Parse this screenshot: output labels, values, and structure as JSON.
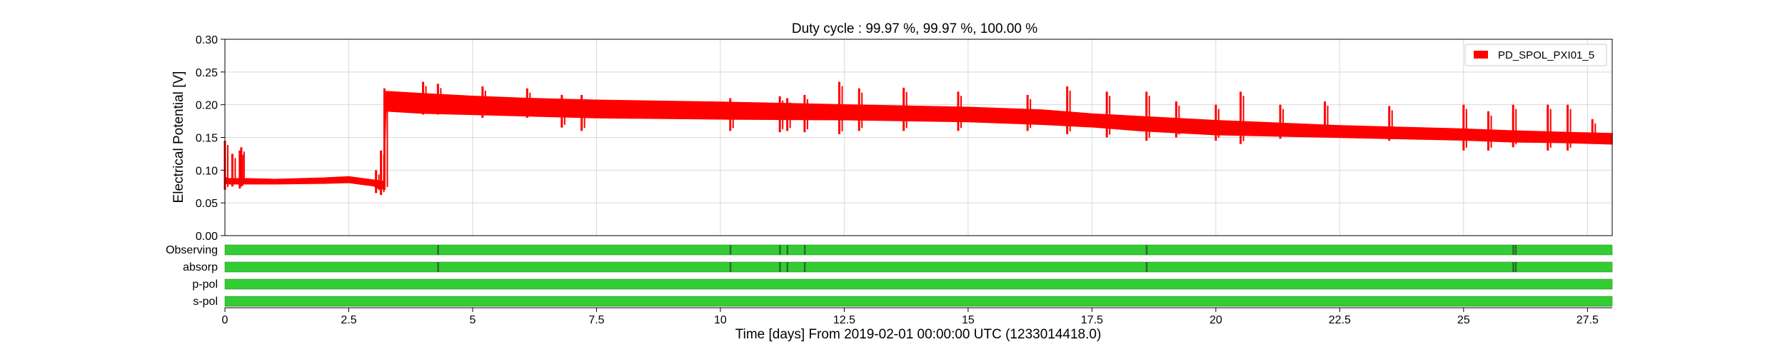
{
  "chart_data": {
    "type": "line",
    "title": "Duty cycle : 99.97 %, 99.97 %, 100.00 %",
    "xlabel": "Time [days] From 2019-02-01 00:00:00 UTC (1233014418.0)",
    "ylabel": "Electrical Potential [V]",
    "xlim": [
      0,
      28
    ],
    "ylim": [
      0,
      0.3
    ],
    "x_ticks": [
      0,
      2.5,
      5,
      7.5,
      10,
      12.5,
      15,
      17.5,
      20,
      22.5,
      25,
      27.5
    ],
    "x_tick_labels": [
      "0",
      "2.5",
      "5",
      "7.5",
      "10",
      "12.5",
      "15",
      "17.5",
      "20",
      "22.5",
      "25",
      "27.5"
    ],
    "y_ticks": [
      0,
      0.05,
      0.1,
      0.15,
      0.2,
      0.25,
      0.3
    ],
    "y_tick_labels": [
      "0.00",
      "0.05",
      "0.10",
      "0.15",
      "0.20",
      "0.25",
      "0.30"
    ],
    "grid": true,
    "legend": {
      "position": "top-right"
    },
    "series": [
      {
        "name": "PD_SPOL_PXI01_5",
        "color": "#ff0000",
        "band": {
          "x": [
            0,
            0.1,
            0.5,
            1.0,
            2.0,
            2.5,
            3.0,
            3.1,
            3.2,
            3.25,
            3.3,
            4.0,
            5.0,
            6.0,
            7.5,
            10.0,
            12.5,
            15.0,
            16.5,
            17.5,
            18.5,
            20.0,
            22.5,
            25.0,
            26.0,
            27.0,
            28.0
          ],
          "lower": [
            0.08,
            0.079,
            0.079,
            0.079,
            0.08,
            0.081,
            0.076,
            0.072,
            0.071,
            0.19,
            0.19,
            0.187,
            0.185,
            0.183,
            0.18,
            0.178,
            0.177,
            0.174,
            0.17,
            0.166,
            0.16,
            0.154,
            0.15,
            0.146,
            0.143,
            0.142,
            0.14
          ],
          "upper": [
            0.089,
            0.087,
            0.087,
            0.086,
            0.088,
            0.09,
            0.085,
            0.084,
            0.083,
            0.22,
            0.22,
            0.217,
            0.213,
            0.21,
            0.207,
            0.204,
            0.2,
            0.196,
            0.192,
            0.186,
            0.182,
            0.176,
            0.168,
            0.163,
            0.16,
            0.158,
            0.156
          ]
        },
        "spikes": [
          {
            "x": 0.0,
            "low": 0.07,
            "high": 0.145
          },
          {
            "x": 0.15,
            "low": 0.075,
            "high": 0.125
          },
          {
            "x": 0.3,
            "low": 0.072,
            "high": 0.13
          },
          {
            "x": 0.33,
            "low": 0.075,
            "high": 0.135
          },
          {
            "x": 3.05,
            "low": 0.065,
            "high": 0.1
          },
          {
            "x": 3.15,
            "low": 0.062,
            "high": 0.13
          },
          {
            "x": 3.22,
            "low": 0.07,
            "high": 0.225
          },
          {
            "x": 4.0,
            "low": 0.185,
            "high": 0.235
          },
          {
            "x": 4.3,
            "low": 0.185,
            "high": 0.232
          },
          {
            "x": 5.2,
            "low": 0.18,
            "high": 0.228
          },
          {
            "x": 6.1,
            "low": 0.18,
            "high": 0.225
          },
          {
            "x": 6.8,
            "low": 0.165,
            "high": 0.215
          },
          {
            "x": 7.2,
            "low": 0.16,
            "high": 0.215
          },
          {
            "x": 10.2,
            "low": 0.16,
            "high": 0.21
          },
          {
            "x": 11.2,
            "low": 0.158,
            "high": 0.213
          },
          {
            "x": 11.35,
            "low": 0.16,
            "high": 0.21
          },
          {
            "x": 11.7,
            "low": 0.158,
            "high": 0.215
          },
          {
            "x": 12.4,
            "low": 0.155,
            "high": 0.235
          },
          {
            "x": 12.8,
            "low": 0.16,
            "high": 0.225
          },
          {
            "x": 13.7,
            "low": 0.16,
            "high": 0.226
          },
          {
            "x": 14.8,
            "low": 0.16,
            "high": 0.22
          },
          {
            "x": 16.2,
            "low": 0.16,
            "high": 0.215
          },
          {
            "x": 17.0,
            "low": 0.155,
            "high": 0.228
          },
          {
            "x": 17.8,
            "low": 0.15,
            "high": 0.22
          },
          {
            "x": 18.6,
            "low": 0.145,
            "high": 0.22
          },
          {
            "x": 19.2,
            "low": 0.15,
            "high": 0.205
          },
          {
            "x": 20.0,
            "low": 0.145,
            "high": 0.2
          },
          {
            "x": 20.5,
            "low": 0.14,
            "high": 0.22
          },
          {
            "x": 21.3,
            "low": 0.148,
            "high": 0.2
          },
          {
            "x": 22.2,
            "low": 0.15,
            "high": 0.205
          },
          {
            "x": 23.5,
            "low": 0.145,
            "high": 0.198
          },
          {
            "x": 25.0,
            "low": 0.13,
            "high": 0.2
          },
          {
            "x": 25.5,
            "low": 0.13,
            "high": 0.19
          },
          {
            "x": 26.0,
            "low": 0.135,
            "high": 0.2
          },
          {
            "x": 26.7,
            "low": 0.13,
            "high": 0.2
          },
          {
            "x": 27.1,
            "low": 0.13,
            "high": 0.2
          },
          {
            "x": 27.6,
            "low": 0.14,
            "high": 0.178
          }
        ]
      }
    ],
    "state_rows": [
      {
        "name": "Observing",
        "color": "#33cc33",
        "gap_color": "#2a6e2a",
        "gaps": [
          4.3,
          10.2,
          11.2,
          11.35,
          11.7,
          18.6,
          26.0,
          26.05
        ]
      },
      {
        "name": "absorp",
        "color": "#33cc33",
        "gap_color": "#2a6e2a",
        "gaps": [
          4.3,
          10.2,
          11.2,
          11.35,
          11.7,
          18.6,
          26.0,
          26.05
        ]
      },
      {
        "name": "p-pol",
        "color": "#33cc33",
        "gap_color": "#2a6e2a",
        "gaps": []
      },
      {
        "name": "s-pol",
        "color": "#33cc33",
        "gap_color": "#2a6e2a",
        "gaps": []
      }
    ]
  }
}
